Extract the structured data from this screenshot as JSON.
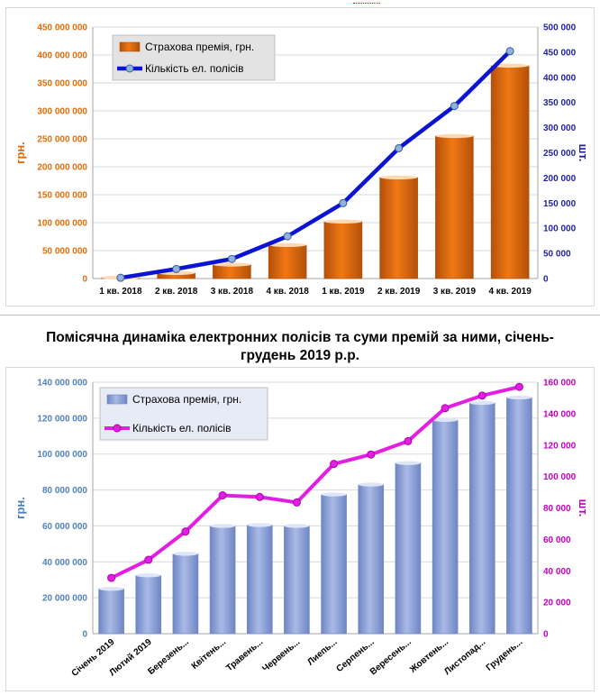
{
  "heading": {
    "line1": "Помісячна динаміка електронних полісів та суми премій за ними, січень-",
    "line2": "грудень 2019 р.р."
  },
  "chart_data": [
    {
      "type": "bar+line",
      "categories": [
        "1 кв. 2018",
        "2 кв. 2018",
        "3 кв. 2018",
        "4 кв. 2018",
        "1 кв. 2019",
        "2 кв. 2019",
        "3 кв. 2019",
        "4 кв. 2019"
      ],
      "series": [
        {
          "name": "Страхова премія, грн.",
          "type": "bar",
          "axis": "left",
          "color": "#f07814",
          "values": [
            1500000,
            10000000,
            25000000,
            60000000,
            102000000,
            181000000,
            255000000,
            381000000
          ]
        },
        {
          "name": "Кількість ел. полісів",
          "type": "line",
          "axis": "right",
          "color": "#0a14d2",
          "values": [
            1500,
            19000,
            39000,
            84000,
            150000,
            259000,
            343000,
            452000
          ]
        }
      ],
      "ylabel": "грн.",
      "y2label": "шт.",
      "ylim": [
        0,
        450000000
      ],
      "y2lim": [
        0,
        500000
      ],
      "yticks": [
        "0",
        "50 000 000",
        "100 000 000",
        "150 000 000",
        "200 000 000",
        "250 000 000",
        "300 000 000",
        "350 000 000",
        "400 000 000",
        "450 000 000"
      ],
      "y2ticks": [
        "0",
        "50 000",
        "100 000",
        "150 000",
        "200 000",
        "250 000",
        "300 000",
        "350 000",
        "400 000",
        "450 000",
        "500 000"
      ],
      "legend_position": "top-left",
      "grid": true,
      "axis_color": "#e36c09",
      "axis2_color": "#1f1fa0"
    },
    {
      "type": "bar+line",
      "categories": [
        "Січень 2019",
        "Лютий 2019",
        "Березень...",
        "Квітень...",
        "Травень...",
        "Червень...",
        "Лиепь...",
        "Серпень...",
        "Вересень...",
        "Жовтень...",
        "Листопад...",
        "Грудень..."
      ],
      "series": [
        {
          "name": "Страхова премія, грн.",
          "type": "bar",
          "axis": "left",
          "color": "#a9bae6",
          "values": [
            25000000,
            32500000,
            44500000,
            60000000,
            60500000,
            60000000,
            77500000,
            83000000,
            95000000,
            119000000,
            128500000,
            131500000
          ]
        },
        {
          "name": "Кількість ел. полісів",
          "type": "line",
          "axis": "right",
          "color": "#e11ee1",
          "values": [
            35500,
            47000,
            65000,
            88000,
            87000,
            83500,
            108000,
            114000,
            122500,
            143500,
            151500,
            157000
          ]
        }
      ],
      "ylabel": "грн.",
      "y2label": "шт.",
      "ylim": [
        0,
        140000000
      ],
      "y2lim": [
        0,
        160000
      ],
      "yticks": [
        "0",
        "20 000 000",
        "40 000 000",
        "60 000 000",
        "80 000 000",
        "100 000 000",
        "120 000 000",
        "140 000 000"
      ],
      "y2ticks": [
        "0",
        "20 000",
        "40 000",
        "60 000",
        "80 000",
        "100 000",
        "120 000",
        "140 000",
        "160 000"
      ],
      "legend_position": "top-left",
      "grid": true,
      "axis_color": "#4f81bd",
      "axis2_color": "#c000c0"
    }
  ]
}
